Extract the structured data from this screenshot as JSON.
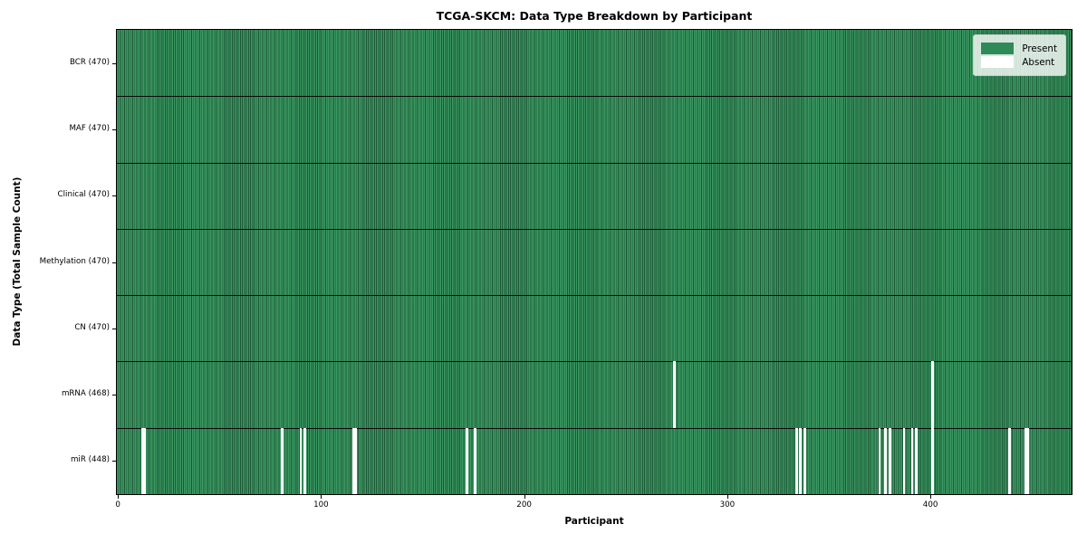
{
  "figure": {
    "title": "TCGA-SKCM: Data Type Breakdown by Participant",
    "xlabel": "Participant",
    "ylabel": "Data Type (Total Sample Count)"
  },
  "legend": {
    "items": [
      {
        "label": "Present",
        "color": "#2e8b57"
      },
      {
        "label": "Absent",
        "color": "#ffffff"
      }
    ]
  },
  "chart_data": {
    "type": "heatmap",
    "title": "TCGA-SKCM: Data Type Breakdown by Participant",
    "xlabel": "Participant",
    "ylabel": "Data Type (Total Sample Count)",
    "legend_position": "upper right",
    "n_participants": 470,
    "x_ticks": [
      0,
      100,
      200,
      300,
      400
    ],
    "categories": [
      "BCR (470)",
      "MAF (470)",
      "Clinical (470)",
      "Methylation (470)",
      "CN (470)",
      "mRNA (468)",
      "miR (448)"
    ],
    "rows": [
      {
        "label": "BCR (470)",
        "data_type": "BCR",
        "present_count": 470,
        "absent_participants": []
      },
      {
        "label": "MAF (470)",
        "data_type": "MAF",
        "present_count": 470,
        "absent_participants": []
      },
      {
        "label": "Clinical (470)",
        "data_type": "Clinical",
        "present_count": 470,
        "absent_participants": []
      },
      {
        "label": "Methylation (470)",
        "data_type": "Methylation",
        "present_count": 470,
        "absent_participants": []
      },
      {
        "label": "CN (470)",
        "data_type": "CN",
        "present_count": 470,
        "absent_participants": []
      },
      {
        "label": "mRNA (468)",
        "data_type": "mRNA",
        "present_count": 468,
        "absent_participants": [
          274,
          401
        ]
      },
      {
        "label": "miR (448)",
        "data_type": "miR",
        "present_count": 448,
        "absent_participants": [
          12,
          13,
          81,
          90,
          92,
          116,
          117,
          172,
          176,
          334,
          336,
          338,
          375,
          378,
          380,
          387,
          391,
          393,
          401,
          439,
          447,
          448
        ]
      }
    ],
    "colors": {
      "present": "#2e8b57",
      "absent": "#ffffff",
      "bar_stripe_light": "#3a9a62",
      "bar_stripe_dark": "#1d5636"
    }
  }
}
